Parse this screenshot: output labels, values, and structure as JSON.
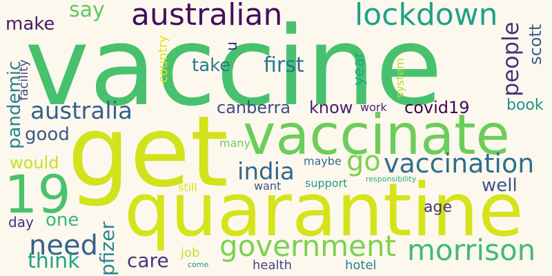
{
  "colors": {
    "background": "#fdf8ee"
  },
  "words": [
    {
      "text": "vaccine",
      "color": "#48c16e"
    },
    {
      "text": "get",
      "color": "#d2e21b"
    },
    {
      "text": "quarantine",
      "color": "#d6e31a"
    },
    {
      "text": "vaccinate",
      "color": "#6ccd5a"
    },
    {
      "text": "19",
      "color": "#4ac26c"
    },
    {
      "text": "australian",
      "color": "#440f5e"
    },
    {
      "text": "lockdown",
      "color": "#1fa188"
    },
    {
      "text": "government",
      "color": "#7ad151"
    },
    {
      "text": "morrison",
      "color": "#3fbc73"
    },
    {
      "text": "vaccination",
      "color": "#2c6f8e"
    },
    {
      "text": "australia",
      "color": "#355f8d"
    },
    {
      "text": "need",
      "color": "#33638d"
    },
    {
      "text": "india",
      "color": "#31688e"
    },
    {
      "text": "go",
      "color": "#7ad151"
    },
    {
      "text": "people",
      "color": "#46337e"
    },
    {
      "text": "think",
      "color": "#1fa187"
    },
    {
      "text": "pfizer",
      "color": "#24878e"
    },
    {
      "text": "care",
      "color": "#453581"
    },
    {
      "text": "say",
      "color": "#5ec962"
    },
    {
      "text": "make",
      "color": "#48186a"
    },
    {
      "text": "pandemic",
      "color": "#26828e"
    },
    {
      "text": "take",
      "color": "#2a788e"
    },
    {
      "text": "first",
      "color": "#2c728e"
    },
    {
      "text": "canberra",
      "color": "#3e4a89"
    },
    {
      "text": "know",
      "color": "#482173"
    },
    {
      "text": "covid19",
      "color": "#440154"
    },
    {
      "text": "good",
      "color": "#38588c"
    },
    {
      "text": "would",
      "color": "#c8e020"
    },
    {
      "text": "one",
      "color": "#35b779"
    },
    {
      "text": "well",
      "color": "#3b528b"
    },
    {
      "text": "book",
      "color": "#20928c"
    },
    {
      "text": "scott",
      "color": "#355f8d"
    },
    {
      "text": "year",
      "color": "#22a785"
    },
    {
      "text": "age",
      "color": "#453781"
    },
    {
      "text": "day",
      "color": "#472d7b"
    },
    {
      "text": "u",
      "color": "#46327e"
    },
    {
      "text": "facility",
      "color": "#3e4989"
    },
    {
      "text": "country",
      "color": "#dde318"
    },
    {
      "text": "system",
      "color": "#b5de2b"
    },
    {
      "text": "work",
      "color": "#482475"
    },
    {
      "text": "many",
      "color": "#6ece58"
    },
    {
      "text": "maybe",
      "color": "#31688e"
    },
    {
      "text": "want",
      "color": "#3b528b"
    },
    {
      "text": "support",
      "color": "#1f9e89"
    },
    {
      "text": "responsibility",
      "color": "#29af7f"
    },
    {
      "text": "still",
      "color": "#d8e219"
    },
    {
      "text": "job",
      "color": "#c2df23"
    },
    {
      "text": "health",
      "color": "#414487"
    },
    {
      "text": "hotel",
      "color": "#26828e"
    },
    {
      "text": "come",
      "color": "#21918c"
    }
  ]
}
